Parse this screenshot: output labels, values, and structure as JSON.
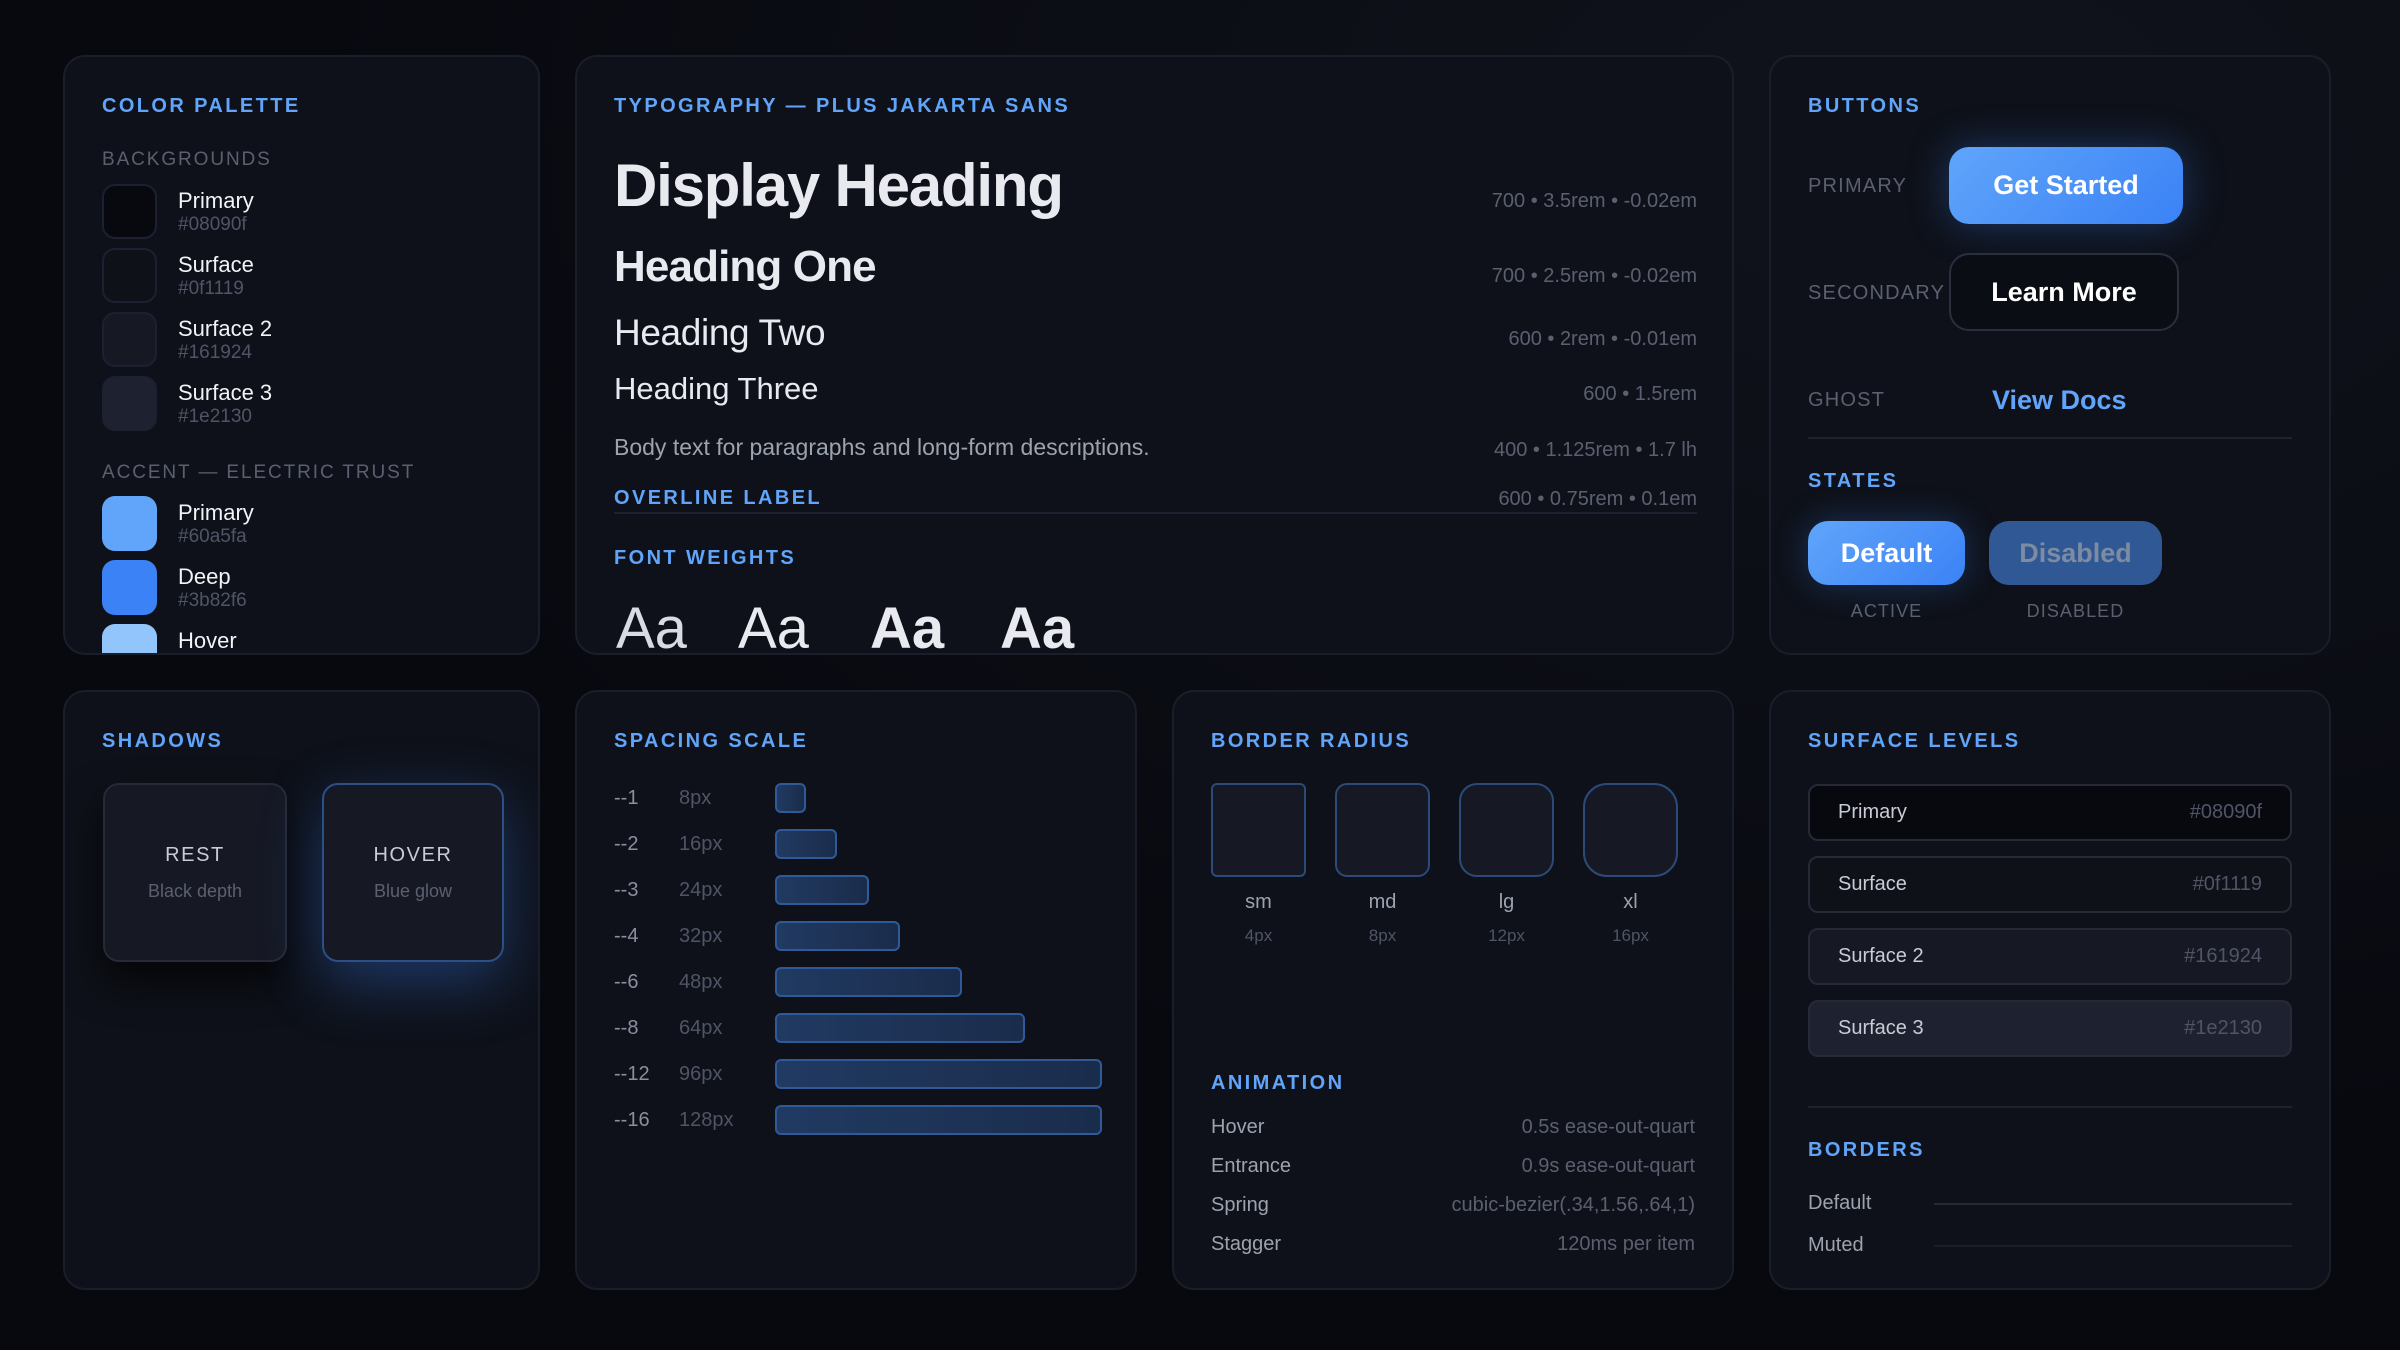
{
  "palette": {
    "title": "COLOR PALETTE",
    "backgrounds_label": "BACKGROUNDS",
    "accent_label": "ACCENT — ELECTRIC TRUST",
    "backgrounds": [
      {
        "name": "Primary",
        "hex": "#08090f"
      },
      {
        "name": "Surface",
        "hex": "#0f1119"
      },
      {
        "name": "Surface 2",
        "hex": "#161924"
      },
      {
        "name": "Surface 3",
        "hex": "#1e2130"
      }
    ],
    "accents": [
      {
        "name": "Primary",
        "hex": "#60a5fa"
      },
      {
        "name": "Deep",
        "hex": "#3b82f6"
      },
      {
        "name": "Hover",
        "color": "#93c5fd"
      }
    ]
  },
  "typography": {
    "title": "TYPOGRAPHY — PLUS JAKARTA SANS",
    "samples": [
      {
        "text": "Display Heading",
        "spec": "700 • 3.5rem • -0.02em"
      },
      {
        "text": "Heading One",
        "spec": "700 • 2.5rem • -0.02em"
      },
      {
        "text": "Heading Two",
        "spec": "600 • 2rem • -0.01em"
      },
      {
        "text": "Heading Three",
        "spec": "600 • 1.5rem"
      },
      {
        "text": "Body text for paragraphs and long-form descriptions.",
        "spec": "400 • 1.125rem • 1.7 lh"
      },
      {
        "text": "OVERLINE LABEL",
        "spec": "600 • 0.75rem • 0.1em"
      }
    ],
    "weights_label": "FONT WEIGHTS",
    "weights": [
      {
        "text": "Aa",
        "weight": 300
      },
      {
        "text": "Aa",
        "weight": 400
      },
      {
        "text": "Aa",
        "weight": 600
      },
      {
        "text": "Aa",
        "weight": 700
      }
    ]
  },
  "buttons": {
    "title": "BUTTONS",
    "primary_label": "PRIMARY",
    "primary_button": "Get Started",
    "secondary_label": "SECONDARY",
    "secondary_button": "Learn More",
    "ghost_label": "GHOST",
    "ghost_button": "View Docs",
    "states_title": "STATES",
    "default_button": "Default",
    "disabled_button": "Disabled",
    "active_caption": "ACTIVE",
    "disabled_caption": "DISABLED"
  },
  "shadows": {
    "title": "SHADOWS",
    "rest": {
      "label": "REST",
      "desc": "Black depth"
    },
    "hover": {
      "label": "HOVER",
      "desc": "Blue glow"
    }
  },
  "spacing": {
    "title": "SPACING SCALE",
    "items": [
      {
        "token": "--1",
        "value": "8px"
      },
      {
        "token": "--2",
        "value": "16px"
      },
      {
        "token": "--3",
        "value": "24px"
      },
      {
        "token": "--4",
        "value": "32px"
      },
      {
        "token": "--6",
        "value": "48px"
      },
      {
        "token": "--8",
        "value": "64px"
      },
      {
        "token": "--12",
        "value": "96px"
      },
      {
        "token": "--16",
        "value": "128px"
      }
    ]
  },
  "radius": {
    "title": "BORDER RADIUS",
    "items": [
      {
        "name": "sm",
        "value": "4px"
      },
      {
        "name": "md",
        "value": "8px"
      },
      {
        "name": "lg",
        "value": "12px"
      },
      {
        "name": "xl",
        "value": "16px"
      }
    ]
  },
  "animation": {
    "title": "ANIMATION",
    "items": [
      {
        "name": "Hover",
        "value": "0.5s ease-out-quart"
      },
      {
        "name": "Entrance",
        "value": "0.9s ease-out-quart"
      },
      {
        "name": "Spring",
        "value": "cubic-bezier(.34,1.56,.64,1)"
      },
      {
        "name": "Stagger",
        "value": "120ms per item"
      }
    ]
  },
  "surfaces": {
    "title": "SURFACE LEVELS",
    "items": [
      {
        "name": "Primary",
        "hex": "#08090f"
      },
      {
        "name": "Surface",
        "hex": "#0f1119"
      },
      {
        "name": "Surface 2",
        "hex": "#161924"
      },
      {
        "name": "Surface 3",
        "hex": "#1e2130"
      }
    ]
  },
  "borders": {
    "title": "BORDERS",
    "items": [
      {
        "name": "Default",
        "color": "#262a36"
      },
      {
        "name": "Muted",
        "color": "#1a1e2a"
      }
    ]
  },
  "colors": {
    "accent": "#60a5fa",
    "accent_deep": "#3b82f6"
  }
}
